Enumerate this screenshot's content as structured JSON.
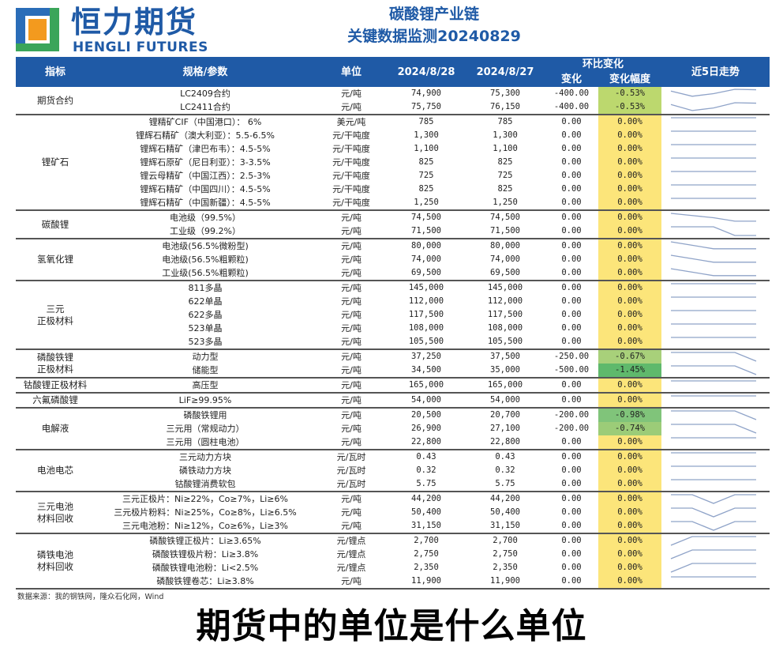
{
  "logo": {
    "cn": "恒力期货",
    "en": "HENGLI FUTURES"
  },
  "title": {
    "line1": "碳酸锂产业链",
    "line2": "关键数据监测20240829"
  },
  "header": {
    "indicator": "指标",
    "spec": "规格/参数",
    "unit": "单位",
    "date1": "2024/8/28",
    "date2": "2024/8/27",
    "mom": "环比变化",
    "change": "变化",
    "change_pct": "变化幅度",
    "trend": "近5日走势"
  },
  "colors": {
    "header": "#1f5aa6",
    "zero": "#fce57a",
    "trend_line": "#8fa3c8"
  },
  "groups": [
    {
      "name": "期货合约",
      "rows": [
        {
          "spec": "LC2409合约",
          "unit": "元/吨",
          "d28": "74,900",
          "d27": "75,300",
          "chg": "-400.00",
          "pct": "-0.53%",
          "color": "#bcd86e",
          "trend": [
            0.8,
            0.2,
            0.5,
            1,
            0.95
          ]
        },
        {
          "spec": "LC2411合约",
          "unit": "元/吨",
          "d28": "75,750",
          "d27": "76,150",
          "chg": "-400.00",
          "pct": "-0.53%",
          "color": "#bcd86e",
          "trend": [
            0.8,
            0.1,
            0.4,
            1,
            0.95
          ]
        }
      ]
    },
    {
      "name": "锂矿石",
      "rows": [
        {
          "spec": "锂精矿CIF（中国港口）： 6%",
          "unit": "美元/吨",
          "d28": "785",
          "d27": "785",
          "chg": "0.00",
          "pct": "0.00%",
          "color": "#fce57a",
          "trend": [
            1,
            1,
            1,
            1,
            1
          ]
        },
        {
          "spec": "锂辉石精矿（澳大利亚）：5.5-6.5%",
          "unit": "元/干吨度",
          "d28": "1,300",
          "d27": "1,300",
          "chg": "0.00",
          "pct": "0.00%",
          "color": "#fce57a",
          "trend": [
            1,
            1,
            1,
            1,
            1
          ]
        },
        {
          "spec": "锂辉石精矿（津巴布韦）：4.5-5%",
          "unit": "元/干吨度",
          "d28": "1,100",
          "d27": "1,100",
          "chg": "0.00",
          "pct": "0.00%",
          "color": "#fce57a",
          "trend": [
            1,
            1,
            1,
            1,
            1
          ]
        },
        {
          "spec": "锂辉石原矿（尼日利亚）：3-3.5%",
          "unit": "元/干吨度",
          "d28": "825",
          "d27": "825",
          "chg": "0.00",
          "pct": "0.00%",
          "color": "#fce57a",
          "trend": [
            1,
            1,
            1,
            1,
            1
          ]
        },
        {
          "spec": "锂云母精矿（中国江西）：2.5-3%",
          "unit": "元/干吨度",
          "d28": "725",
          "d27": "725",
          "chg": "0.00",
          "pct": "0.00%",
          "color": "#fce57a",
          "trend": [
            1,
            1,
            1,
            1,
            1
          ]
        },
        {
          "spec": "锂辉石精矿（中国四川）：4.5-5%",
          "unit": "元/干吨度",
          "d28": "825",
          "d27": "825",
          "chg": "0.00",
          "pct": "0.00%",
          "color": "#fce57a",
          "trend": [
            1,
            1,
            1,
            1,
            1
          ]
        },
        {
          "spec": "锂辉石精矿（中国新疆）：4.5-5%",
          "unit": "元/干吨度",
          "d28": "1,250",
          "d27": "1,250",
          "chg": "0.00",
          "pct": "0.00%",
          "color": "#fce57a",
          "trend": [
            1,
            1,
            1,
            1,
            1
          ]
        }
      ]
    },
    {
      "name": "碳酸锂",
      "rows": [
        {
          "spec": "电池级（99.5%）",
          "unit": "元/吨",
          "d28": "74,500",
          "d27": "74,500",
          "chg": "0.00",
          "pct": "0.00%",
          "color": "#fce57a",
          "trend": [
            1,
            0.75,
            0.5,
            0.1,
            0.1
          ]
        },
        {
          "spec": "工业级（99.2%）",
          "unit": "元/吨",
          "d28": "71,500",
          "d27": "71,500",
          "chg": "0.00",
          "pct": "0.00%",
          "color": "#fce57a",
          "trend": [
            1,
            1,
            1,
            0,
            0
          ]
        }
      ]
    },
    {
      "name": "氢氧化锂",
      "rows": [
        {
          "spec": "电池级(56.5%微粉型)",
          "unit": "元/吨",
          "d28": "80,000",
          "d27": "80,000",
          "chg": "0.00",
          "pct": "0.00%",
          "color": "#fce57a",
          "trend": [
            1,
            0.6,
            0.2,
            0.2,
            0.2
          ]
        },
        {
          "spec": "电池级(56.5%粗颗粒)",
          "unit": "元/吨",
          "d28": "74,000",
          "d27": "74,000",
          "chg": "0.00",
          "pct": "0.00%",
          "color": "#fce57a",
          "trend": [
            1,
            0.6,
            0.2,
            0.2,
            0.2
          ]
        },
        {
          "spec": "工业级(56.5%粗颗粒)",
          "unit": "元/吨",
          "d28": "69,500",
          "d27": "69,500",
          "chg": "0.00",
          "pct": "0.00%",
          "color": "#fce57a",
          "trend": [
            1,
            0.6,
            0.2,
            0.2,
            0.2
          ]
        }
      ]
    },
    {
      "name": "三元\n正极材料",
      "rows": [
        {
          "spec": "811多晶",
          "unit": "元/吨",
          "d28": "145,000",
          "d27": "145,000",
          "chg": "0.00",
          "pct": "0.00%",
          "color": "#fce57a",
          "trend": [
            1,
            1,
            1,
            1,
            1
          ]
        },
        {
          "spec": "622单晶",
          "unit": "元/吨",
          "d28": "112,000",
          "d27": "112,000",
          "chg": "0.00",
          "pct": "0.00%",
          "color": "#fce57a",
          "trend": [
            1,
            1,
            1,
            1,
            1
          ]
        },
        {
          "spec": "622多晶",
          "unit": "元/吨",
          "d28": "117,500",
          "d27": "117,500",
          "chg": "0.00",
          "pct": "0.00%",
          "color": "#fce57a",
          "trend": [
            1,
            1,
            1,
            1,
            1
          ]
        },
        {
          "spec": "523单晶",
          "unit": "元/吨",
          "d28": "108,000",
          "d27": "108,000",
          "chg": "0.00",
          "pct": "0.00%",
          "color": "#fce57a",
          "trend": [
            1,
            1,
            1,
            1,
            1
          ]
        },
        {
          "spec": "523多晶",
          "unit": "元/吨",
          "d28": "105,500",
          "d27": "105,500",
          "chg": "0.00",
          "pct": "0.00%",
          "color": "#fce57a",
          "trend": [
            1,
            1,
            1,
            1,
            1
          ]
        }
      ]
    },
    {
      "name": "磷酸铁锂\n正极材料",
      "rows": [
        {
          "spec": "动力型",
          "unit": "元/吨",
          "d28": "37,250",
          "d27": "37,500",
          "chg": "-250.00",
          "pct": "-0.67%",
          "color": "#a8d07a",
          "trend": [
            1,
            1,
            1,
            1,
            0
          ]
        },
        {
          "spec": "储能型",
          "unit": "元/吨",
          "d28": "34,500",
          "d27": "35,000",
          "chg": "-500.00",
          "pct": "-1.45%",
          "color": "#5fb96c",
          "trend": [
            1,
            1,
            1,
            1,
            0
          ]
        }
      ]
    },
    {
      "name": "钴酸锂正极材料",
      "rows": [
        {
          "spec": "高压型",
          "unit": "元/吨",
          "d28": "165,000",
          "d27": "165,000",
          "chg": "0.00",
          "pct": "0.00%",
          "color": "#fce57a",
          "trend": [
            1,
            1,
            1,
            1,
            1
          ]
        }
      ]
    },
    {
      "name": "六氟磷酸锂",
      "rows": [
        {
          "spec": "LiF≥99.95%",
          "unit": "元/吨",
          "d28": "54,000",
          "d27": "54,000",
          "chg": "0.00",
          "pct": "0.00%",
          "color": "#fce57a",
          "trend": [
            1,
            1,
            1,
            1,
            1
          ]
        }
      ]
    },
    {
      "name": "电解液",
      "rows": [
        {
          "spec": "磷酸铁锂用",
          "unit": "元/吨",
          "d28": "20,500",
          "d27": "20,700",
          "chg": "-200.00",
          "pct": "-0.98%",
          "color": "#80c47a",
          "trend": [
            1,
            1,
            1,
            1,
            0
          ]
        },
        {
          "spec": "三元用（常规动力）",
          "unit": "元/吨",
          "d28": "26,900",
          "d27": "27,100",
          "chg": "-200.00",
          "pct": "-0.74%",
          "color": "#9ccc78",
          "trend": [
            1,
            1,
            1,
            1,
            0
          ]
        },
        {
          "spec": "三元用（圆柱电池）",
          "unit": "元/吨",
          "d28": "22,800",
          "d27": "22,800",
          "chg": "0.00",
          "pct": "0.00%",
          "color": "#fce57a",
          "trend": [
            1,
            1,
            1,
            1,
            1
          ]
        }
      ]
    },
    {
      "name": "电池电芯",
      "rows": [
        {
          "spec": "三元动力方块",
          "unit": "元/瓦时",
          "d28": "0.43",
          "d27": "0.43",
          "chg": "0.00",
          "pct": "0.00%",
          "color": "#fce57a",
          "trend": [
            1,
            1,
            1,
            1,
            1
          ]
        },
        {
          "spec": "磷铁动力方块",
          "unit": "元/瓦时",
          "d28": "0.32",
          "d27": "0.32",
          "chg": "0.00",
          "pct": "0.00%",
          "color": "#fce57a",
          "trend": [
            1,
            1,
            1,
            1,
            1
          ]
        },
        {
          "spec": "钴酸锂消费软包",
          "unit": "元/瓦时",
          "d28": "5.75",
          "d27": "5.75",
          "chg": "0.00",
          "pct": "0.00%",
          "color": "#fce57a",
          "trend": [
            1,
            1,
            1,
            1,
            1
          ]
        }
      ]
    },
    {
      "name": "三元电池\n材料回收",
      "rows": [
        {
          "spec": "三元正极片：Ni≥22%，Co≥7%，Li≥6%",
          "unit": "元/吨",
          "d28": "44,200",
          "d27": "44,200",
          "chg": "0.00",
          "pct": "0.00%",
          "color": "#fce57a",
          "trend": [
            1,
            1,
            0,
            1,
            1
          ]
        },
        {
          "spec": "三元极片粉料：Ni≥25%，Co≥8%，Li≥6.5%",
          "unit": "元/吨",
          "d28": "50,400",
          "d27": "50,400",
          "chg": "0.00",
          "pct": "0.00%",
          "color": "#fce57a",
          "trend": [
            1,
            1,
            0,
            1,
            1
          ]
        },
        {
          "spec": "三元电池粉：Ni≥12%，Co≥6%，Li≥3%",
          "unit": "元/吨",
          "d28": "31,150",
          "d27": "31,150",
          "chg": "0.00",
          "pct": "0.00%",
          "color": "#fce57a",
          "trend": [
            1,
            1,
            0,
            1,
            1
          ]
        }
      ]
    },
    {
      "name": "磷铁电池\n材料回收",
      "rows": [
        {
          "spec": "磷酸铁锂正极片：Li≥3.65%",
          "unit": "元/锂点",
          "d28": "2,700",
          "d27": "2,700",
          "chg": "0.00",
          "pct": "0.00%",
          "color": "#fce57a",
          "trend": [
            0,
            1,
            1,
            1,
            1
          ]
        },
        {
          "spec": "磷酸铁锂极片粉：Li≥3.8%",
          "unit": "元/锂点",
          "d28": "2,750",
          "d27": "2,750",
          "chg": "0.00",
          "pct": "0.00%",
          "color": "#fce57a",
          "trend": [
            0,
            1,
            1,
            1,
            1
          ]
        },
        {
          "spec": "磷酸铁锂电池粉：Li<2.5%",
          "unit": "元/锂点",
          "d28": "2,350",
          "d27": "2,350",
          "chg": "0.00",
          "pct": "0.00%",
          "color": "#fce57a",
          "trend": [
            0,
            1,
            1,
            1,
            1
          ]
        },
        {
          "spec": "磷酸铁锂卷芯：Li≥3.8%",
          "unit": "元/吨",
          "d28": "11,900",
          "d27": "11,900",
          "chg": "0.00",
          "pct": "0.00%",
          "color": "#fce57a",
          "trend": [
            1,
            1,
            1,
            1,
            1
          ]
        }
      ]
    }
  ],
  "source": "数据来源：我的钢铁网，隆众石化网，Wind",
  "overlay_title": "期货中的单位是什么单位"
}
